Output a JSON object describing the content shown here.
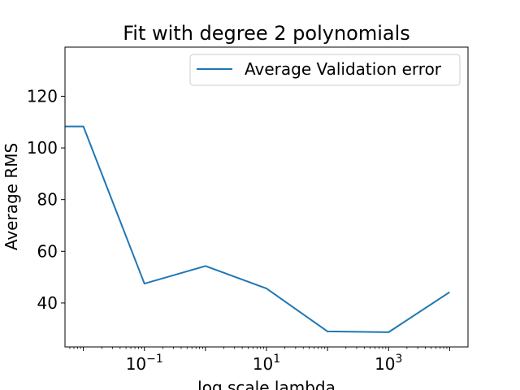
{
  "chart_data": {
    "type": "line",
    "title": "Fit with degree 2 polynomials",
    "xlabel": "log scale lambda",
    "ylabel": "Average RMS",
    "xscale": "log",
    "xlim": [
      0.005,
      20000
    ],
    "ylim": [
      23,
      139
    ],
    "grid": false,
    "legend_position": "top-right",
    "x_ticks": [
      {
        "value": 0.1,
        "base": "10",
        "exp": "−1"
      },
      {
        "value": 10,
        "base": "10",
        "exp": "1"
      },
      {
        "value": 1000,
        "base": "10",
        "exp": "3"
      }
    ],
    "y_ticks": [
      40,
      60,
      80,
      100,
      120
    ],
    "series": [
      {
        "name": "Average Validation error",
        "color": "#1f77b4",
        "x": [
          0.001,
          0.01,
          0.1,
          1,
          10,
          100,
          1000,
          10000
        ],
        "y": [
          108.3,
          108.3,
          47.5,
          54.3,
          45.6,
          29.0,
          28.7,
          44.2
        ]
      }
    ]
  }
}
